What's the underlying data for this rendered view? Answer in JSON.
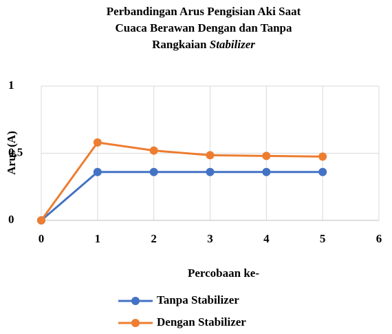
{
  "chart_data": {
    "type": "line",
    "title": [
      [
        {
          "text": "Perbandingan Arus Pengisian Aki Saat"
        }
      ],
      [
        {
          "text": "Cuaca Berawan Dengan dan Tanpa"
        }
      ],
      [
        {
          "text": "Rangkaian "
        },
        {
          "text": "Stabilizer",
          "italic": true
        }
      ]
    ],
    "x_label": "Percobaan ke-",
    "y_label": "Arus (A)",
    "x": [
      0,
      1,
      2,
      3,
      4,
      5
    ],
    "series": [
      {
        "name": "Tanpa Stabilizer",
        "color": "#4472c4",
        "values": [
          0,
          0.36,
          0.36,
          0.36,
          0.36,
          0.36
        ]
      },
      {
        "name": "Dengan Stabilizer",
        "color": "#ed7d31",
        "values": [
          0,
          0.58,
          0.52,
          0.485,
          0.48,
          0.475
        ]
      }
    ],
    "xlim": [
      0,
      6
    ],
    "xticks": [
      0,
      1,
      2,
      3,
      4,
      5,
      6
    ],
    "ylim": [
      0,
      1
    ],
    "yticks": [
      0,
      {
        "value": 0.5,
        "label": "0,5"
      },
      1
    ],
    "grid": true,
    "legend": "bottom"
  }
}
